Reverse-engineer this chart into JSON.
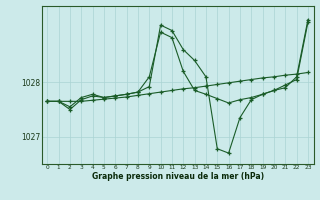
{
  "xlabel": "Graphe pression niveau de la mer (hPa)",
  "bg_color": "#cceaea",
  "grid_color": "#aad4d4",
  "line_color": "#1a5c28",
  "x_ticks": [
    0,
    1,
    2,
    3,
    4,
    5,
    6,
    7,
    8,
    9,
    10,
    11,
    12,
    13,
    14,
    15,
    16,
    17,
    18,
    19,
    20,
    21,
    22,
    23
  ],
  "ylim": [
    1026.5,
    1029.4
  ],
  "yticks": [
    1027,
    1028
  ],
  "series": [
    [
      1027.65,
      1027.65,
      1027.65,
      1027.65,
      1027.67,
      1027.69,
      1027.71,
      1027.73,
      1027.76,
      1027.79,
      1027.82,
      1027.85,
      1027.88,
      1027.9,
      1027.93,
      1027.96,
      1027.99,
      1028.02,
      1028.05,
      1028.08,
      1028.1,
      1028.13,
      1028.15,
      1028.18
    ],
    [
      1027.65,
      1027.65,
      1027.5,
      1027.68,
      1027.75,
      1027.72,
      1027.75,
      1027.78,
      1027.82,
      1028.1,
      1028.92,
      1028.82,
      1028.2,
      1027.85,
      1027.78,
      1027.7,
      1027.62,
      1027.68,
      1027.72,
      1027.78,
      1027.85,
      1027.95,
      1028.05,
      1029.1
    ],
    [
      1027.65,
      1027.65,
      1027.55,
      1027.72,
      1027.78,
      1027.72,
      1027.75,
      1027.78,
      1027.82,
      1027.92,
      1029.05,
      1028.95,
      1028.6,
      1028.4,
      1028.1,
      1026.78,
      1026.7,
      1027.35,
      1027.68,
      1027.78,
      1027.85,
      1027.9,
      1028.1,
      1029.15
    ]
  ]
}
